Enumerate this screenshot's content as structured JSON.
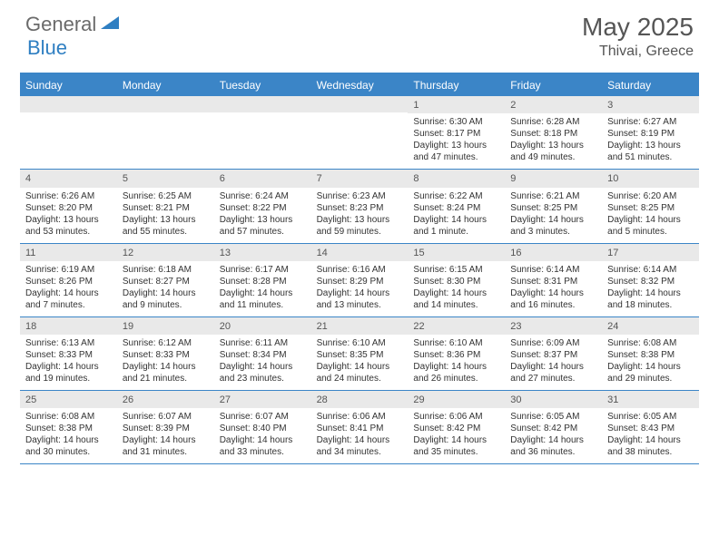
{
  "logo": {
    "part1": "General",
    "part2": "Blue"
  },
  "title": "May 2025",
  "location": "Thivai, Greece",
  "colors": {
    "header_bg": "#3b85c7",
    "daynum_bg": "#e9e9e9",
    "text": "#333333",
    "logo_gray": "#6a6a6a",
    "logo_blue": "#2f7fc2"
  },
  "weekdays": [
    "Sunday",
    "Monday",
    "Tuesday",
    "Wednesday",
    "Thursday",
    "Friday",
    "Saturday"
  ],
  "weeks": [
    [
      null,
      null,
      null,
      null,
      {
        "n": "1",
        "sr": "6:30 AM",
        "ss": "8:17 PM",
        "dl": "13 hours and 47 minutes."
      },
      {
        "n": "2",
        "sr": "6:28 AM",
        "ss": "8:18 PM",
        "dl": "13 hours and 49 minutes."
      },
      {
        "n": "3",
        "sr": "6:27 AM",
        "ss": "8:19 PM",
        "dl": "13 hours and 51 minutes."
      }
    ],
    [
      {
        "n": "4",
        "sr": "6:26 AM",
        "ss": "8:20 PM",
        "dl": "13 hours and 53 minutes."
      },
      {
        "n": "5",
        "sr": "6:25 AM",
        "ss": "8:21 PM",
        "dl": "13 hours and 55 minutes."
      },
      {
        "n": "6",
        "sr": "6:24 AM",
        "ss": "8:22 PM",
        "dl": "13 hours and 57 minutes."
      },
      {
        "n": "7",
        "sr": "6:23 AM",
        "ss": "8:23 PM",
        "dl": "13 hours and 59 minutes."
      },
      {
        "n": "8",
        "sr": "6:22 AM",
        "ss": "8:24 PM",
        "dl": "14 hours and 1 minute."
      },
      {
        "n": "9",
        "sr": "6:21 AM",
        "ss": "8:25 PM",
        "dl": "14 hours and 3 minutes."
      },
      {
        "n": "10",
        "sr": "6:20 AM",
        "ss": "8:25 PM",
        "dl": "14 hours and 5 minutes."
      }
    ],
    [
      {
        "n": "11",
        "sr": "6:19 AM",
        "ss": "8:26 PM",
        "dl": "14 hours and 7 minutes."
      },
      {
        "n": "12",
        "sr": "6:18 AM",
        "ss": "8:27 PM",
        "dl": "14 hours and 9 minutes."
      },
      {
        "n": "13",
        "sr": "6:17 AM",
        "ss": "8:28 PM",
        "dl": "14 hours and 11 minutes."
      },
      {
        "n": "14",
        "sr": "6:16 AM",
        "ss": "8:29 PM",
        "dl": "14 hours and 13 minutes."
      },
      {
        "n": "15",
        "sr": "6:15 AM",
        "ss": "8:30 PM",
        "dl": "14 hours and 14 minutes."
      },
      {
        "n": "16",
        "sr": "6:14 AM",
        "ss": "8:31 PM",
        "dl": "14 hours and 16 minutes."
      },
      {
        "n": "17",
        "sr": "6:14 AM",
        "ss": "8:32 PM",
        "dl": "14 hours and 18 minutes."
      }
    ],
    [
      {
        "n": "18",
        "sr": "6:13 AM",
        "ss": "8:33 PM",
        "dl": "14 hours and 19 minutes."
      },
      {
        "n": "19",
        "sr": "6:12 AM",
        "ss": "8:33 PM",
        "dl": "14 hours and 21 minutes."
      },
      {
        "n": "20",
        "sr": "6:11 AM",
        "ss": "8:34 PM",
        "dl": "14 hours and 23 minutes."
      },
      {
        "n": "21",
        "sr": "6:10 AM",
        "ss": "8:35 PM",
        "dl": "14 hours and 24 minutes."
      },
      {
        "n": "22",
        "sr": "6:10 AM",
        "ss": "8:36 PM",
        "dl": "14 hours and 26 minutes."
      },
      {
        "n": "23",
        "sr": "6:09 AM",
        "ss": "8:37 PM",
        "dl": "14 hours and 27 minutes."
      },
      {
        "n": "24",
        "sr": "6:08 AM",
        "ss": "8:38 PM",
        "dl": "14 hours and 29 minutes."
      }
    ],
    [
      {
        "n": "25",
        "sr": "6:08 AM",
        "ss": "8:38 PM",
        "dl": "14 hours and 30 minutes."
      },
      {
        "n": "26",
        "sr": "6:07 AM",
        "ss": "8:39 PM",
        "dl": "14 hours and 31 minutes."
      },
      {
        "n": "27",
        "sr": "6:07 AM",
        "ss": "8:40 PM",
        "dl": "14 hours and 33 minutes."
      },
      {
        "n": "28",
        "sr": "6:06 AM",
        "ss": "8:41 PM",
        "dl": "14 hours and 34 minutes."
      },
      {
        "n": "29",
        "sr": "6:06 AM",
        "ss": "8:42 PM",
        "dl": "14 hours and 35 minutes."
      },
      {
        "n": "30",
        "sr": "6:05 AM",
        "ss": "8:42 PM",
        "dl": "14 hours and 36 minutes."
      },
      {
        "n": "31",
        "sr": "6:05 AM",
        "ss": "8:43 PM",
        "dl": "14 hours and 38 minutes."
      }
    ]
  ],
  "labels": {
    "sunrise": "Sunrise: ",
    "sunset": "Sunset: ",
    "daylight": "Daylight: "
  }
}
